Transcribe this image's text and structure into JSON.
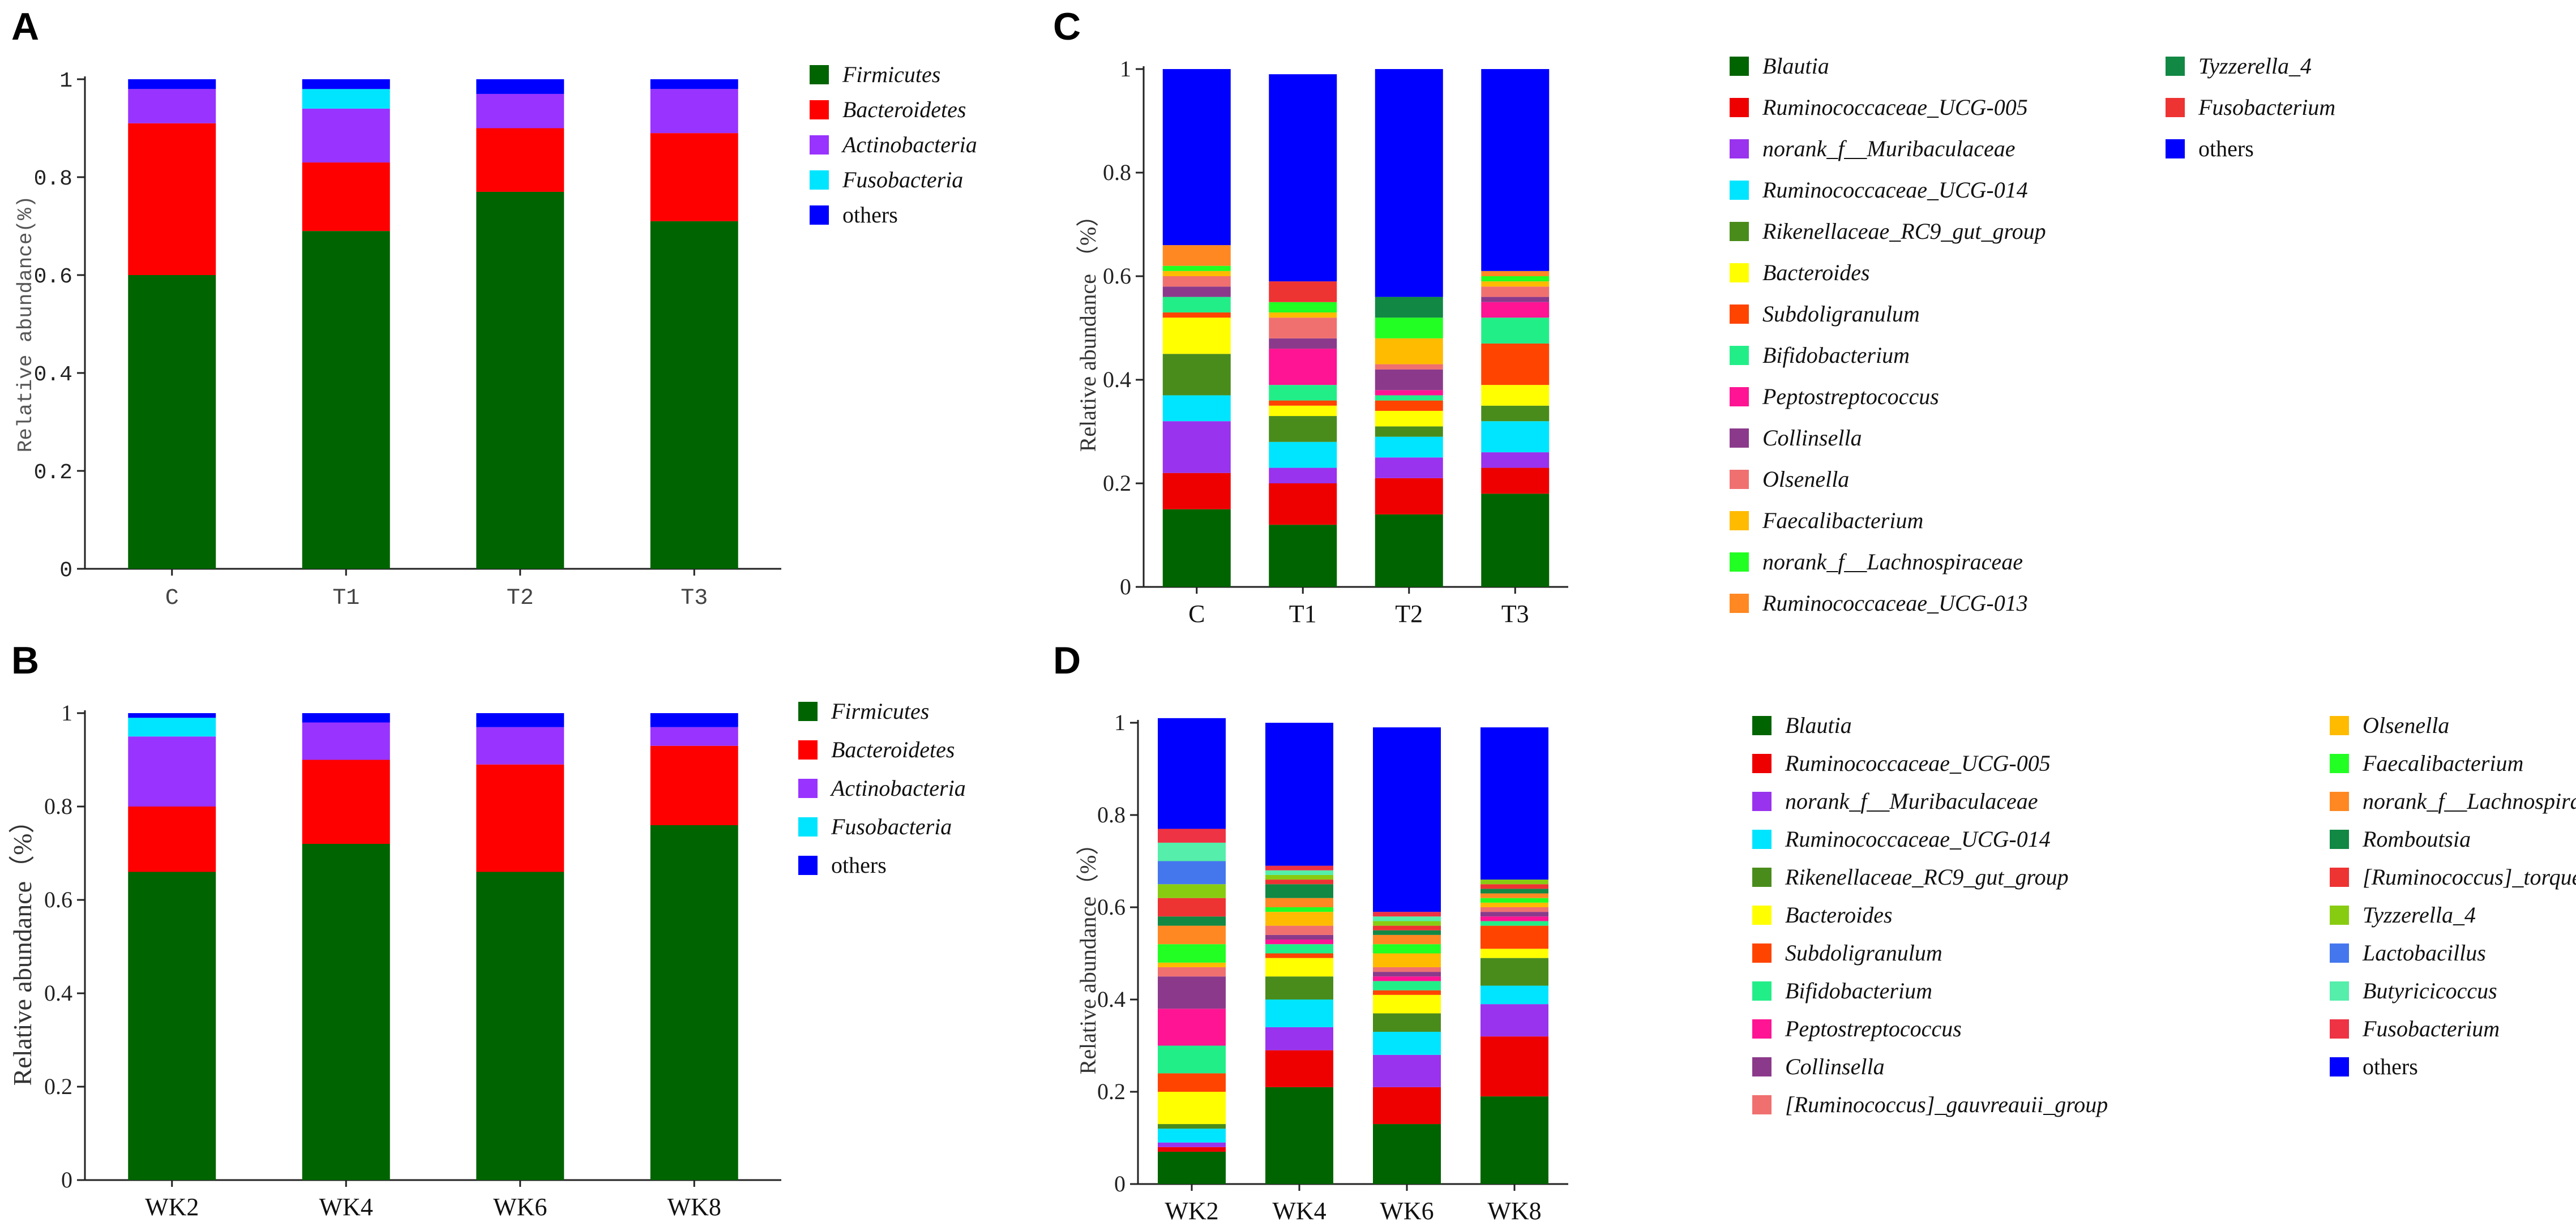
{
  "chart_data": [
    {
      "panel": "A",
      "type": "bar",
      "stacked": true,
      "categories": [
        "C",
        "T1",
        "T2",
        "T3"
      ],
      "ylabel": "Relative abundance(%)",
      "ylim": [
        0,
        1
      ],
      "yticks": [
        "0",
        "0.2",
        "0.4",
        "0.6",
        "0.8",
        "1"
      ],
      "legend_columns": 1,
      "series": [
        {
          "name": "Firmicutes",
          "color": "#006400",
          "values": [
            0.6,
            0.69,
            0.77,
            0.71
          ]
        },
        {
          "name": "Bacteroidetes",
          "color": "#ff0000",
          "values": [
            0.31,
            0.14,
            0.13,
            0.18
          ]
        },
        {
          "name": "Actinobacteria",
          "color": "#9933ff",
          "values": [
            0.07,
            0.11,
            0.07,
            0.09
          ]
        },
        {
          "name": "Fusobacteria",
          "color": "#00e5ff",
          "values": [
            0.0,
            0.04,
            0.0,
            0.0
          ]
        },
        {
          "name": "others",
          "color": "#0000ff",
          "values": [
            0.02,
            0.02,
            0.03,
            0.02
          ]
        }
      ]
    },
    {
      "panel": "B",
      "type": "bar",
      "stacked": true,
      "categories": [
        "WK2",
        "WK4",
        "WK6",
        "WK8"
      ],
      "ylabel": "Relative abundance（%）",
      "ylim": [
        0,
        1
      ],
      "yticks": [
        "0",
        "0.2",
        "0.4",
        "0.6",
        "0.8",
        "1"
      ],
      "legend_columns": 1,
      "series": [
        {
          "name": "Firmicutes",
          "color": "#006400",
          "values": [
            0.66,
            0.72,
            0.66,
            0.76
          ]
        },
        {
          "name": "Bacteroidetes",
          "color": "#ff0000",
          "values": [
            0.14,
            0.18,
            0.23,
            0.17
          ]
        },
        {
          "name": "Actinobacteria",
          "color": "#9933ff",
          "values": [
            0.15,
            0.08,
            0.08,
            0.04
          ]
        },
        {
          "name": "Fusobacteria",
          "color": "#00e5ff",
          "values": [
            0.04,
            0.0,
            0.0,
            0.0
          ]
        },
        {
          "name": "others",
          "color": "#0000ff",
          "values": [
            0.01,
            0.02,
            0.03,
            0.03
          ]
        }
      ]
    },
    {
      "panel": "C",
      "type": "bar",
      "stacked": true,
      "categories": [
        "C",
        "T1",
        "T2",
        "T3"
      ],
      "ylabel": "Relative abundance （%）",
      "ylim": [
        0,
        1
      ],
      "yticks": [
        "0",
        "0.2",
        "0.4",
        "0.6",
        "0.8",
        "1"
      ],
      "legend_columns": 2,
      "series": [
        {
          "name": "Blautia",
          "color": "#006400",
          "values": [
            0.15,
            0.12,
            0.14,
            0.18
          ]
        },
        {
          "name": "Ruminococcaceae_UCG-005",
          "color": "#ee0000",
          "values": [
            0.07,
            0.08,
            0.07,
            0.05
          ]
        },
        {
          "name": "norank_f__Muribaculaceae",
          "color": "#9933ee",
          "values": [
            0.1,
            0.03,
            0.04,
            0.03
          ]
        },
        {
          "name": "Ruminococcaceae_UCG-014",
          "color": "#00e5ff",
          "values": [
            0.05,
            0.05,
            0.04,
            0.06
          ]
        },
        {
          "name": "Rikenellaceae_RC9_gut_group",
          "color": "#4a8c1c",
          "values": [
            0.08,
            0.05,
            0.02,
            0.03
          ]
        },
        {
          "name": "Bacteroides",
          "color": "#ffff00",
          "values": [
            0.07,
            0.02,
            0.03,
            0.04
          ]
        },
        {
          "name": "Subdoligranulum",
          "color": "#ff4400",
          "values": [
            0.01,
            0.01,
            0.02,
            0.08
          ]
        },
        {
          "name": "Bifidobacterium",
          "color": "#22ee88",
          "values": [
            0.03,
            0.03,
            0.01,
            0.05
          ]
        },
        {
          "name": "Peptostreptococcus",
          "color": "#ff1493",
          "values": [
            0.0,
            0.07,
            0.01,
            0.03
          ]
        },
        {
          "name": "Collinsella",
          "color": "#8b3a8b",
          "values": [
            0.02,
            0.02,
            0.04,
            0.01
          ]
        },
        {
          "name": "Olsenella",
          "color": "#f07070",
          "values": [
            0.02,
            0.04,
            0.01,
            0.02
          ]
        },
        {
          "name": "Faecalibacterium",
          "color": "#ffbb00",
          "values": [
            0.01,
            0.01,
            0.05,
            0.01
          ]
        },
        {
          "name": "norank_f__Lachnospiraceae",
          "color": "#22ff22",
          "values": [
            0.01,
            0.02,
            0.04,
            0.01
          ]
        },
        {
          "name": "Ruminococcaceae_UCG-013",
          "color": "#ff8822",
          "values": [
            0.04,
            0.0,
            0.0,
            0.01
          ]
        },
        {
          "name": "Tyzzerella_4",
          "color": "#118844",
          "values": [
            0.0,
            0.0,
            0.04,
            0.0
          ]
        },
        {
          "name": "Fusobacterium",
          "color": "#ee3333",
          "values": [
            0.0,
            0.04,
            0.0,
            0.0
          ]
        },
        {
          "name": "others",
          "color": "#0000ff",
          "values": [
            0.34,
            0.4,
            0.44,
            0.39
          ]
        }
      ]
    },
    {
      "panel": "D",
      "type": "bar",
      "stacked": true,
      "categories": [
        "WK2",
        "WK4",
        "WK6",
        "WK8"
      ],
      "ylabel": "Relative abundance（%）",
      "ylim": [
        0,
        1
      ],
      "yticks": [
        "0",
        "0.2",
        "0.4",
        "0.6",
        "0.8",
        "1"
      ],
      "legend_columns": 2,
      "series": [
        {
          "name": "Blautia",
          "color": "#006400",
          "values": [
            0.07,
            0.21,
            0.13,
            0.19
          ]
        },
        {
          "name": "Ruminococcaceae_UCG-005",
          "color": "#ee0000",
          "values": [
            0.01,
            0.08,
            0.08,
            0.13
          ]
        },
        {
          "name": "norank_f__Muribaculaceae",
          "color": "#9933ee",
          "values": [
            0.01,
            0.05,
            0.07,
            0.07
          ]
        },
        {
          "name": "Ruminococcaceae_UCG-014",
          "color": "#00e5ff",
          "values": [
            0.03,
            0.06,
            0.05,
            0.04
          ]
        },
        {
          "name": "Rikenellaceae_RC9_gut_group",
          "color": "#4a8c1c",
          "values": [
            0.01,
            0.05,
            0.04,
            0.06
          ]
        },
        {
          "name": "Bacteroides",
          "color": "#ffff00",
          "values": [
            0.07,
            0.04,
            0.04,
            0.02
          ]
        },
        {
          "name": "Subdoligranulum",
          "color": "#ff4400",
          "values": [
            0.04,
            0.01,
            0.01,
            0.05
          ]
        },
        {
          "name": "Bifidobacterium",
          "color": "#22ee88",
          "values": [
            0.06,
            0.02,
            0.02,
            0.01
          ]
        },
        {
          "name": "Peptostreptococcus",
          "color": "#ff1493",
          "values": [
            0.08,
            0.01,
            0.01,
            0.01
          ]
        },
        {
          "name": "Collinsella",
          "color": "#8b3a8b",
          "values": [
            0.07,
            0.01,
            0.01,
            0.01
          ]
        },
        {
          "name": "[Ruminococcus]_gauvreauii_group",
          "color": "#f07070",
          "values": [
            0.02,
            0.02,
            0.01,
            0.01
          ]
        },
        {
          "name": "Olsenella",
          "color": "#ffbb00",
          "values": [
            0.01,
            0.03,
            0.03,
            0.01
          ]
        },
        {
          "name": "Faecalibacterium",
          "color": "#22ff22",
          "values": [
            0.04,
            0.01,
            0.02,
            0.01
          ]
        },
        {
          "name": "norank_f__Lachnospiraceae",
          "color": "#ff8822",
          "values": [
            0.04,
            0.02,
            0.02,
            0.01
          ]
        },
        {
          "name": "Romboutsia",
          "color": "#118844",
          "values": [
            0.02,
            0.03,
            0.01,
            0.01
          ]
        },
        {
          "name": "[Ruminococcus]_torques_group",
          "color": "#ee3333",
          "values": [
            0.04,
            0.01,
            0.01,
            0.01
          ]
        },
        {
          "name": "Tyzzerella_4",
          "color": "#88cc11",
          "values": [
            0.03,
            0.01,
            0.01,
            0.01
          ]
        },
        {
          "name": "Lactobacillus",
          "color": "#4477ee",
          "values": [
            0.05,
            0.0,
            0.0,
            0.0
          ]
        },
        {
          "name": "Butyricicoccus",
          "color": "#55eeaa",
          "values": [
            0.04,
            0.01,
            0.01,
            0.0
          ]
        },
        {
          "name": "Fusobacterium",
          "color": "#ee3344",
          "values": [
            0.03,
            0.01,
            0.01,
            0.0
          ]
        },
        {
          "name": "others",
          "color": "#0000ff",
          "values": [
            0.24,
            0.31,
            0.4,
            0.33
          ]
        }
      ]
    }
  ]
}
